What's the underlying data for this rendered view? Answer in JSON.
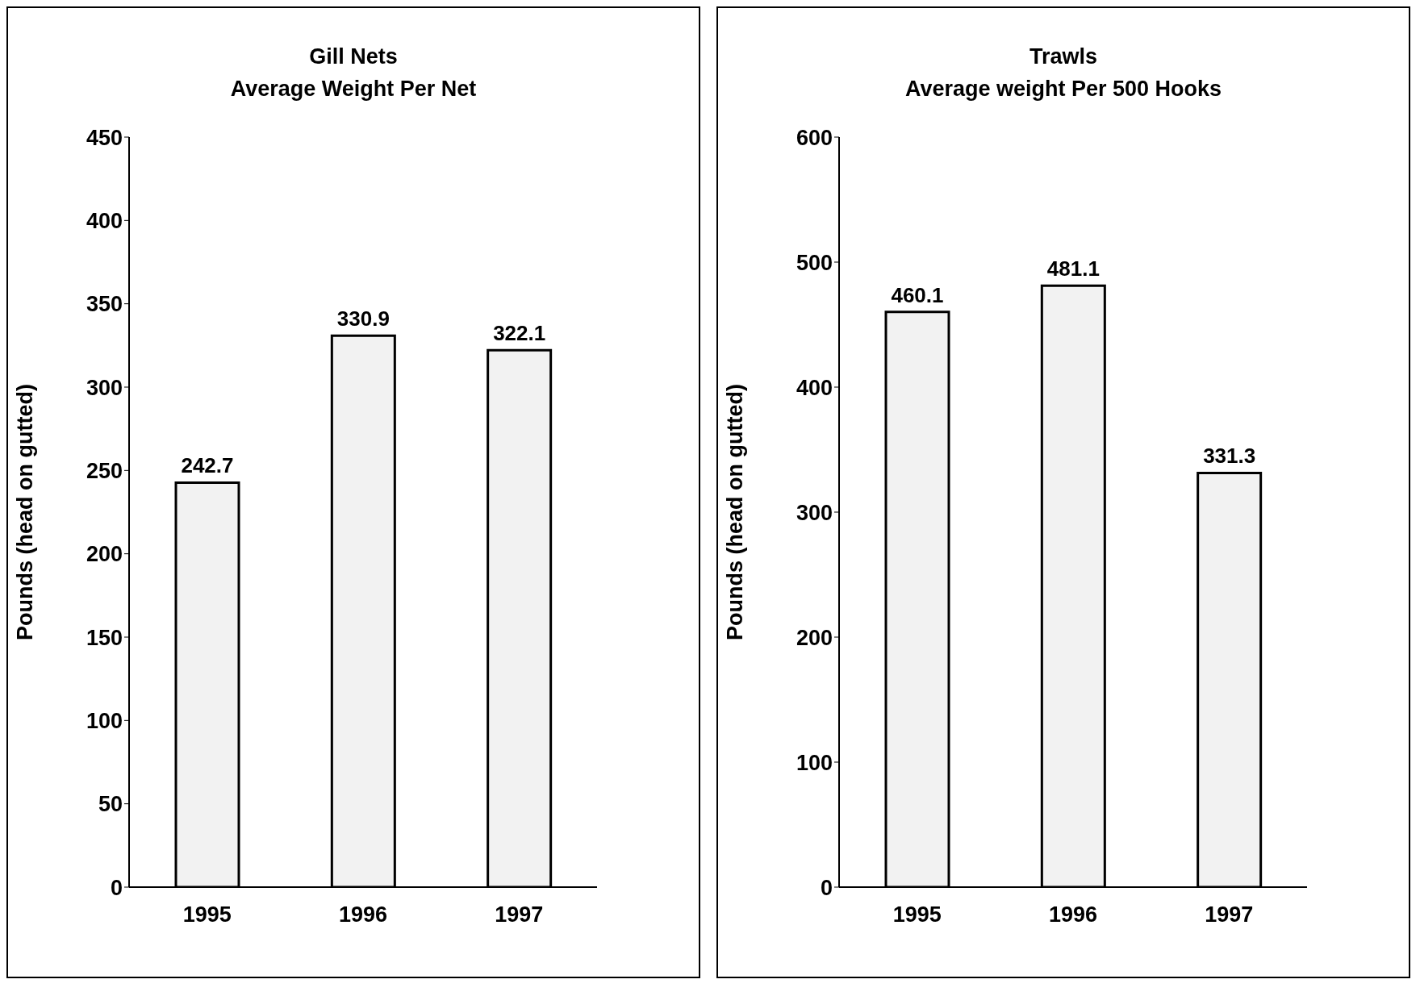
{
  "chart_data": [
    {
      "type": "bar",
      "title": "Gill Nets",
      "subtitle": "Average Weight Per Net",
      "ylabel": "Pounds (head on gutted)",
      "categories": [
        "1995",
        "1996",
        "1997"
      ],
      "values": [
        242.7,
        330.9,
        322.1
      ],
      "color": "#f2f2f2",
      "ylim": [
        0,
        450
      ],
      "yticks": [
        0,
        50,
        100,
        150,
        200,
        250,
        300,
        350,
        400,
        450
      ],
      "data_labels": true
    },
    {
      "type": "bar",
      "title": "Trawls",
      "subtitle": "Average weight Per 500 Hooks",
      "ylabel": "Pounds (head on gutted)",
      "categories": [
        "1995",
        "1996",
        "1997"
      ],
      "values": [
        460.1,
        481.1,
        331.3
      ],
      "color": "#f2f2f2",
      "ylim": [
        0,
        600
      ],
      "yticks": [
        0,
        100,
        200,
        300,
        400,
        500,
        600
      ],
      "data_labels": true
    }
  ]
}
